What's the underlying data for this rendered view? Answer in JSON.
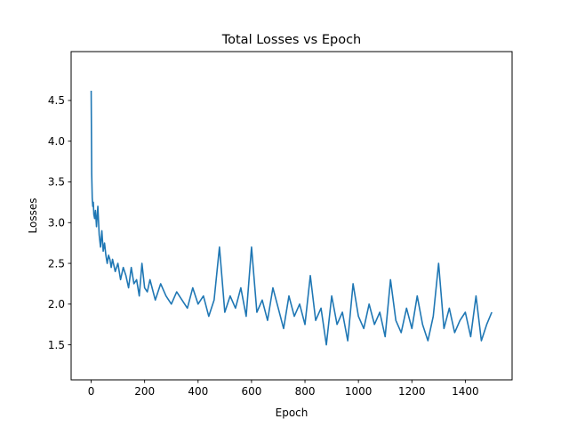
{
  "chart_data": {
    "type": "line",
    "title": "Total Losses vs Epoch",
    "xlabel": "Epoch",
    "ylabel": "Losses",
    "xlim": [
      -75,
      1575
    ],
    "ylim": [
      1.07,
      5.1
    ],
    "xticks": [
      0,
      200,
      400,
      600,
      800,
      1000,
      1200,
      1400
    ],
    "yticks": [
      1.5,
      2.0,
      2.5,
      3.0,
      3.5,
      4.0,
      4.5
    ],
    "grid": false,
    "legend": "none",
    "series": [
      {
        "color": "#1f77b4",
        "x": [
          0,
          2,
          4,
          6,
          8,
          10,
          13,
          16,
          20,
          25,
          30,
          35,
          40,
          45,
          50,
          55,
          60,
          65,
          70,
          75,
          80,
          90,
          100,
          110,
          120,
          130,
          140,
          150,
          160,
          170,
          180,
          190,
          200,
          210,
          220,
          240,
          260,
          280,
          300,
          320,
          340,
          360,
          380,
          400,
          420,
          440,
          460,
          480,
          500,
          520,
          540,
          560,
          580,
          600,
          620,
          640,
          660,
          680,
          700,
          720,
          740,
          760,
          780,
          800,
          820,
          840,
          860,
          880,
          900,
          920,
          940,
          960,
          980,
          1000,
          1020,
          1040,
          1060,
          1080,
          1100,
          1120,
          1140,
          1160,
          1180,
          1200,
          1220,
          1240,
          1260,
          1280,
          1300,
          1320,
          1340,
          1360,
          1380,
          1400,
          1420,
          1440,
          1460,
          1480,
          1499
        ],
        "values": [
          4.62,
          3.6,
          3.3,
          3.2,
          3.25,
          3.1,
          3.05,
          3.15,
          2.95,
          3.2,
          2.85,
          2.7,
          2.9,
          2.65,
          2.75,
          2.6,
          2.5,
          2.6,
          2.55,
          2.45,
          2.55,
          2.4,
          2.5,
          2.3,
          2.45,
          2.35,
          2.2,
          2.45,
          2.25,
          2.3,
          2.1,
          2.5,
          2.2,
          2.15,
          2.3,
          2.05,
          2.25,
          2.1,
          2.0,
          2.15,
          2.05,
          1.95,
          2.2,
          2.0,
          2.1,
          1.85,
          2.05,
          2.7,
          1.9,
          2.1,
          1.95,
          2.2,
          1.85,
          2.7,
          1.9,
          2.05,
          1.8,
          2.2,
          1.95,
          1.7,
          2.1,
          1.85,
          2.0,
          1.75,
          2.35,
          1.8,
          1.95,
          1.5,
          2.1,
          1.75,
          1.9,
          1.55,
          2.25,
          1.85,
          1.7,
          2.0,
          1.75,
          1.9,
          1.6,
          2.3,
          1.8,
          1.65,
          1.95,
          1.7,
          2.1,
          1.75,
          1.55,
          1.85,
          2.5,
          1.7,
          1.95,
          1.65,
          1.8,
          1.9,
          1.6,
          2.1,
          1.55,
          1.75,
          1.9
        ]
      }
    ]
  }
}
